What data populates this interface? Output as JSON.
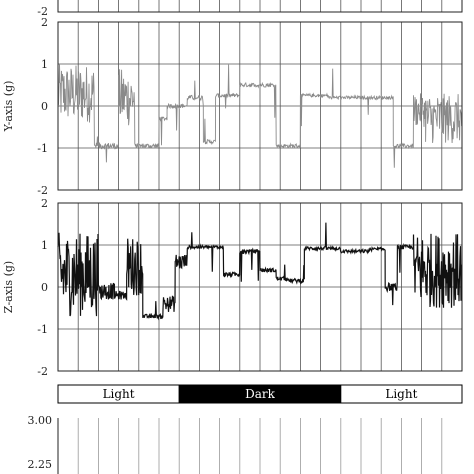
{
  "chart_data": [
    {
      "type": "line",
      "panel": "top (cropped)",
      "ylabel": "",
      "ylim": [
        -2,
        2
      ],
      "yticks": [
        "-2"
      ],
      "grid": true,
      "series": [
        {
          "color": "#000000",
          "values": []
        }
      ]
    },
    {
      "type": "line",
      "panel": "y-axis",
      "ylabel": "Y-axis (g)",
      "ylim": [
        -2,
        2
      ],
      "yticks": [
        "2",
        "1",
        "0",
        "-1",
        "-2"
      ],
      "grid": true,
      "series": [
        {
          "color": "#8a8a8a",
          "segments": [
            {
              "x": [
                0.0,
                0.09
              ],
              "mean": 0.3,
              "noise": 0.7
            },
            {
              "x": [
                0.09,
                0.15
              ],
              "mean": -0.95,
              "noise": 0.08
            },
            {
              "x": [
                0.15,
                0.19
              ],
              "mean": 0.2,
              "noise": 0.7
            },
            {
              "x": [
                0.19,
                0.25
              ],
              "mean": -0.95,
              "noise": 0.06
            },
            {
              "x": [
                0.25,
                0.27
              ],
              "mean": -0.3,
              "noise": 0.05
            },
            {
              "x": [
                0.27,
                0.32
              ],
              "mean": 0.0,
              "noise": 0.05
            },
            {
              "x": [
                0.32,
                0.36
              ],
              "mean": 0.2,
              "noise": 0.06
            },
            {
              "x": [
                0.36,
                0.39
              ],
              "mean": -0.85,
              "noise": 0.05
            },
            {
              "x": [
                0.39,
                0.45
              ],
              "mean": 0.25,
              "noise": 0.05
            },
            {
              "x": [
                0.45,
                0.54
              ],
              "mean": 0.5,
              "noise": 0.05
            },
            {
              "x": [
                0.54,
                0.6
              ],
              "mean": -0.95,
              "noise": 0.05
            },
            {
              "x": [
                0.6,
                0.67
              ],
              "mean": 0.25,
              "noise": 0.04
            },
            {
              "x": [
                0.67,
                0.83
              ],
              "mean": 0.2,
              "noise": 0.04
            },
            {
              "x": [
                0.83,
                0.88
              ],
              "mean": -0.95,
              "noise": 0.05
            },
            {
              "x": [
                0.88,
                0.91
              ],
              "mean": -0.1,
              "noise": 0.4
            },
            {
              "x": [
                0.91,
                1.0
              ],
              "mean": -0.3,
              "noise": 0.6
            }
          ]
        }
      ]
    },
    {
      "type": "line",
      "panel": "z-axis",
      "ylabel": "Z-axis (g)",
      "ylim": [
        -2,
        2
      ],
      "yticks": [
        "2",
        "1",
        "0",
        "-1",
        "-2"
      ],
      "grid": true,
      "series": [
        {
          "color": "#111111",
          "segments": [
            {
              "x": [
                0.0,
                0.1
              ],
              "mean": 0.3,
              "noise": 1.0
            },
            {
              "x": [
                0.1,
                0.14
              ],
              "mean": -0.1,
              "noise": 0.2
            },
            {
              "x": [
                0.14,
                0.17
              ],
              "mean": -0.2,
              "noise": 0.1
            },
            {
              "x": [
                0.17,
                0.21
              ],
              "mean": 0.5,
              "noise": 0.7
            },
            {
              "x": [
                0.21,
                0.26
              ],
              "mean": -0.7,
              "noise": 0.05
            },
            {
              "x": [
                0.26,
                0.29
              ],
              "mean": -0.4,
              "noise": 0.2
            },
            {
              "x": [
                0.29,
                0.32
              ],
              "mean": 0.6,
              "noise": 0.2
            },
            {
              "x": [
                0.32,
                0.41
              ],
              "mean": 0.95,
              "noise": 0.04
            },
            {
              "x": [
                0.41,
                0.45
              ],
              "mean": 0.3,
              "noise": 0.05
            },
            {
              "x": [
                0.45,
                0.5
              ],
              "mean": 0.85,
              "noise": 0.05
            },
            {
              "x": [
                0.5,
                0.54
              ],
              "mean": 0.4,
              "noise": 0.05
            },
            {
              "x": [
                0.54,
                0.57
              ],
              "mean": 0.2,
              "noise": 0.05
            },
            {
              "x": [
                0.57,
                0.61
              ],
              "mean": 0.15,
              "noise": 0.05
            },
            {
              "x": [
                0.61,
                0.7
              ],
              "mean": 0.92,
              "noise": 0.04
            },
            {
              "x": [
                0.7,
                0.77
              ],
              "mean": 0.85,
              "noise": 0.04
            },
            {
              "x": [
                0.77,
                0.81
              ],
              "mean": 0.9,
              "noise": 0.04
            },
            {
              "x": [
                0.81,
                0.84
              ],
              "mean": 0.0,
              "noise": 0.1
            },
            {
              "x": [
                0.84,
                0.88
              ],
              "mean": 0.95,
              "noise": 0.05
            },
            {
              "x": [
                0.88,
                1.0
              ],
              "mean": 0.4,
              "noise": 0.9
            }
          ]
        }
      ]
    },
    {
      "type": "table",
      "panel": "light-dark bar",
      "segments": [
        {
          "label": "Light",
          "start": 0.0,
          "end": 0.3,
          "fill": "#ffffff",
          "text": "#000000"
        },
        {
          "label": "Dark",
          "start": 0.3,
          "end": 0.7,
          "fill": "#000000",
          "text": "#ffffff"
        },
        {
          "label": "Light",
          "start": 0.7,
          "end": 1.0,
          "fill": "#ffffff",
          "text": "#000000"
        }
      ]
    },
    {
      "type": "line",
      "panel": "bottom (cropped)",
      "yticks": [
        "3.00",
        "2.25"
      ],
      "grid": true,
      "series": [
        {
          "color": "#888888",
          "values": []
        }
      ]
    }
  ]
}
